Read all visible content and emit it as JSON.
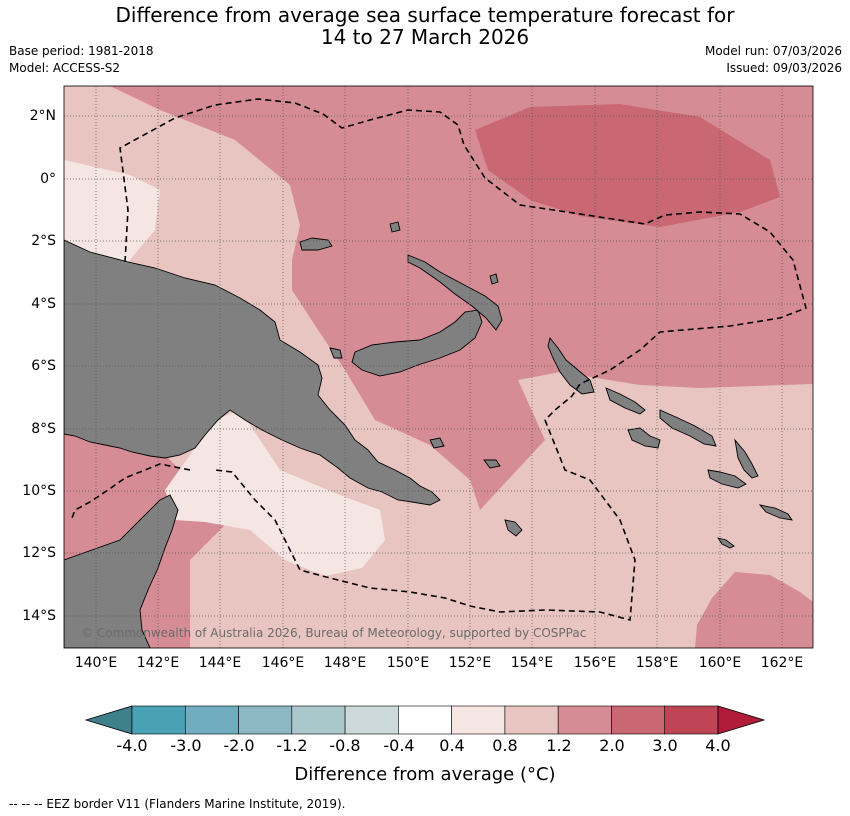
{
  "title": {
    "line1": "Difference from average sea surface temperature forecast for",
    "line2": "14 to 27 March 2026"
  },
  "meta": {
    "base_period": "Base period: 1981-2018",
    "model": "Model: ACCESS-S2",
    "model_run": "Model run: 07/03/2026",
    "issued": "Issued: 09/03/2026"
  },
  "map": {
    "lat_labels": [
      "2°N",
      "0°",
      "2°S",
      "4°S",
      "6°S",
      "8°S",
      "10°S",
      "12°S",
      "14°S"
    ],
    "lon_labels": [
      "140°E",
      "142°E",
      "144°E",
      "146°E",
      "148°E",
      "150°E",
      "152°E",
      "154°E",
      "156°E",
      "158°E",
      "160°E",
      "162°E"
    ],
    "copyright": "© Commonwealth of Australia 2026, Bureau of Meteorology, supported by COSPPac",
    "land_color": "#808080",
    "colors": {
      "c_0.4_0.8": "#f5e6e4",
      "c_0.8_1.2": "#e8c5c1",
      "c_1.2_2.0": "#d68c94",
      "c_2.0_3.0": "#c96872"
    }
  },
  "colorbar": {
    "ticks": [
      "-4.0",
      "-3.0",
      "-2.0",
      "-1.2",
      "-0.8",
      "-0.4",
      "0.4",
      "0.8",
      "1.2",
      "2.0",
      "3.0",
      "4.0"
    ],
    "colors": [
      "#3e808b",
      "#48a1b4",
      "#70aebf",
      "#8db8c4",
      "#a9c8cc",
      "#ccd9da",
      "#ffffff",
      "#f5e6e4",
      "#e8c5c1",
      "#d68c94",
      "#c96872",
      "#bf4556",
      "#b21c3b"
    ],
    "title": "Difference from average (°C)"
  },
  "footer": {
    "legend": "--  --  -- EEZ border V11 (Flanders Marine Institute, 2019)."
  }
}
